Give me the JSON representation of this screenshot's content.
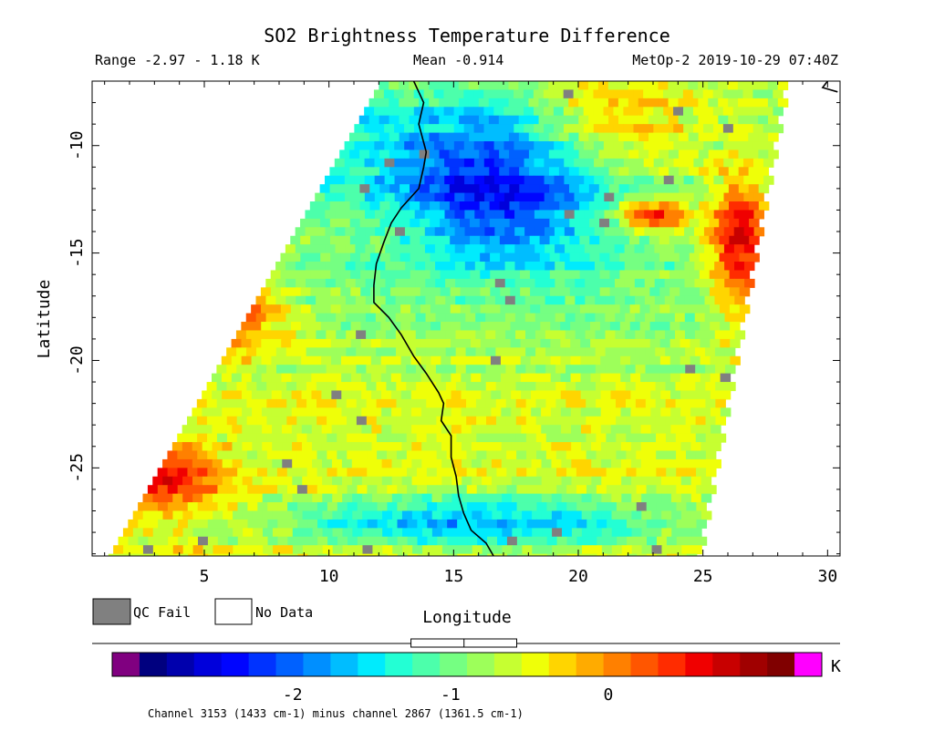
{
  "chart_data": {
    "type": "heatmap",
    "title": "SO2 Brightness Temperature Difference",
    "range_label": "Range -2.97 - 1.18 K",
    "mean_label": "Mean -0.914",
    "instrument_label": "MetOp-2 2019-10-29 07:40Z",
    "range_min": -2.97,
    "range_max": 1.18,
    "mean": -0.914,
    "xlabel": "Longitude",
    "ylabel": "Latitude",
    "xlim": [
      0.5,
      30.5
    ],
    "ylim": [
      -29.1,
      -7.0
    ],
    "x_ticks": [
      5,
      10,
      15,
      20,
      25,
      30
    ],
    "x_tick_labels": [
      "5",
      "10",
      "15",
      "20",
      "25",
      "30"
    ],
    "y_ticks": [
      -10,
      -15,
      -20,
      -25
    ],
    "y_tick_labels": [
      "-10",
      "-15",
      "-20",
      "-25"
    ],
    "swath": {
      "top_left_lon": 12.0,
      "top_right_lon": 28.2,
      "bottom_left_lon": 1.1,
      "bottom_right_lon": 24.6,
      "top_lat": -7.0,
      "bottom_lat": -29.1
    },
    "cell_size_deg": {
      "lon": 0.4,
      "lat": 0.4
    },
    "field_features": [
      {
        "lon": 17.0,
        "lat": -12.5,
        "sigma_lon": 2.8,
        "sigma_lat": 2.2,
        "delta_K": -1.3
      },
      {
        "lon": 14.0,
        "lat": -9.5,
        "sigma_lon": 5.0,
        "sigma_lat": 2.0,
        "delta_K": -0.6
      },
      {
        "lon": 16.0,
        "lat": -27.6,
        "sigma_lon": 5.5,
        "sigma_lat": 0.9,
        "delta_K": -1.25
      },
      {
        "lon": 26.5,
        "lat": -14.5,
        "sigma_lon": 0.9,
        "sigma_lat": 2.2,
        "delta_K": 1.6
      },
      {
        "lon": 23.0,
        "lat": -13.3,
        "sigma_lon": 0.9,
        "sigma_lat": 0.5,
        "delta_K": 1.4
      },
      {
        "lon": 6.0,
        "lat": -18.0,
        "sigma_lon": 1.6,
        "sigma_lat": 1.2,
        "delta_K": 1.1
      },
      {
        "lon": 3.5,
        "lat": -25.5,
        "sigma_lon": 1.5,
        "sigma_lat": 1.0,
        "delta_K": 1.1
      },
      {
        "lon": 21.5,
        "lat": -9.0,
        "sigma_lon": 2.5,
        "sigma_lat": 2.0,
        "delta_K": 0.7
      }
    ],
    "coastline_lonlat": [
      [
        13.4,
        -7.0
      ],
      [
        13.8,
        -8.0
      ],
      [
        13.6,
        -9.0
      ],
      [
        13.9,
        -10.3
      ],
      [
        13.8,
        -11.0
      ],
      [
        13.6,
        -12.0
      ],
      [
        12.9,
        -12.9
      ],
      [
        12.5,
        -13.6
      ],
      [
        12.2,
        -14.5
      ],
      [
        11.9,
        -15.5
      ],
      [
        11.8,
        -16.5
      ],
      [
        11.8,
        -17.3
      ],
      [
        12.4,
        -18.0
      ],
      [
        12.9,
        -18.8
      ],
      [
        13.4,
        -19.8
      ],
      [
        13.9,
        -20.6
      ],
      [
        14.4,
        -21.5
      ],
      [
        14.6,
        -22.0
      ],
      [
        14.5,
        -22.8
      ],
      [
        14.9,
        -23.5
      ],
      [
        14.9,
        -24.5
      ],
      [
        15.1,
        -25.4
      ],
      [
        15.2,
        -26.3
      ],
      [
        15.4,
        -27.1
      ],
      [
        15.7,
        -27.9
      ],
      [
        16.3,
        -28.5
      ],
      [
        16.6,
        -29.1
      ]
    ],
    "corner_coast_lonlat": [
      [
        30.0,
        -7.0
      ],
      [
        29.8,
        -7.3
      ],
      [
        30.4,
        -7.5
      ]
    ],
    "colorbar": {
      "tick_values": [
        -2,
        -1,
        0
      ],
      "tick_labels": [
        "-2",
        "-1",
        "0"
      ],
      "unit": "K",
      "under_color": "#800080",
      "over_color": "#ff00ff",
      "colors": [
        "#00007f",
        "#0000ad",
        "#0000db",
        "#0005ff",
        "#0033ff",
        "#0061ff",
        "#008fff",
        "#00bdff",
        "#00ebfd",
        "#23ffd4",
        "#4cffab",
        "#75ff82",
        "#9dff5a",
        "#c6ff31",
        "#efff08",
        "#ffd500",
        "#ffab00",
        "#ff8000",
        "#ff5600",
        "#ff2c00",
        "#f00000",
        "#c80000",
        "#a00000",
        "#800000"
      ],
      "mean_box": {
        "low": -1.25,
        "mean": -0.914,
        "high": -0.58
      }
    },
    "legend": [
      {
        "label": "QC Fail",
        "color": "#808080"
      },
      {
        "label": "No Data",
        "color": "#ffffff"
      }
    ],
    "footnote": "Channel 3153 (1433 cm-1) minus channel 2867 (1361.5 cm-1)"
  }
}
